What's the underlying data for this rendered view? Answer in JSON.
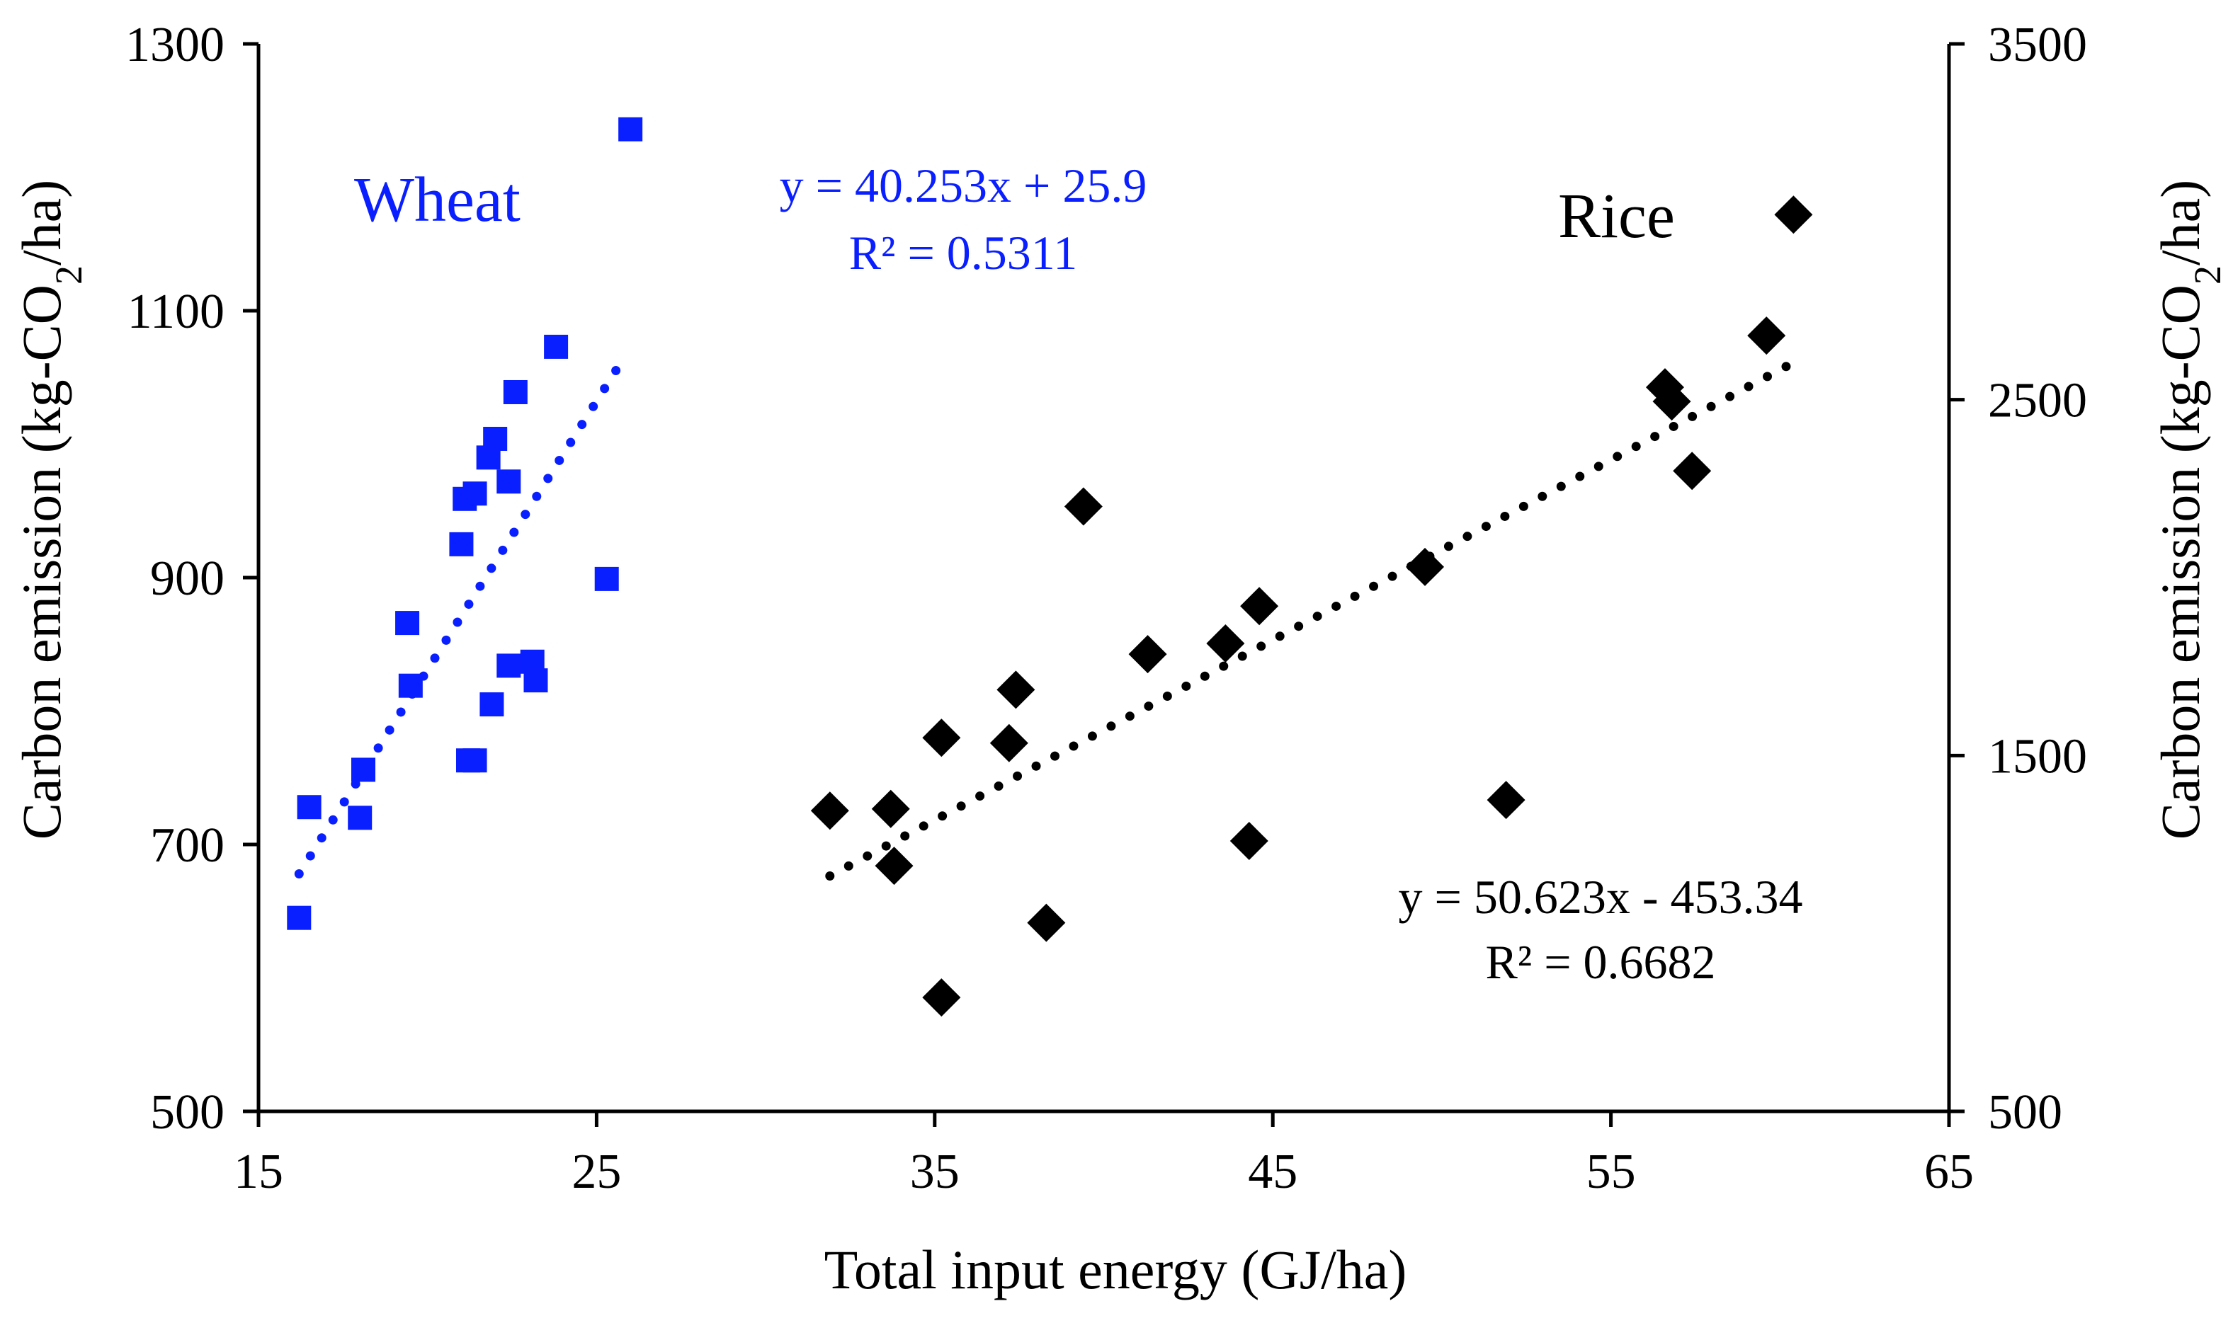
{
  "chart_data": {
    "type": "scatter",
    "xlabel": "Total input energy (GJ/ha)",
    "ylabel_left": {
      "pre": "Carbon emission (kg-CO",
      "sub": "2",
      "post": "/ha)"
    },
    "ylabel_right": {
      "pre": "Carbon emission (kg-CO",
      "sub": "2",
      "post": "/ha)"
    },
    "xlim": [
      15,
      65
    ],
    "ylim_left": [
      500,
      1300
    ],
    "ylim_right": [
      500,
      3500
    ],
    "x_ticks": [
      15,
      25,
      35,
      45,
      55,
      65
    ],
    "y_left_ticks": [
      500,
      700,
      900,
      1100,
      1300
    ],
    "y_right_ticks": [
      500,
      1500,
      2500,
      3500
    ],
    "grid": false,
    "series": [
      {
        "name": "Wheat",
        "axis": "left",
        "color": "#0a1fff",
        "marker": "square",
        "trendline": {
          "type": "linear",
          "slope": 40.253,
          "intercept": 25.9,
          "x_range": [
            16.2,
            25.6
          ]
        },
        "equation": "y = 40.253x + 25.9",
        "r2": "R² = 0.5311",
        "points": [
          [
            16.2,
            645
          ],
          [
            16.5,
            728
          ],
          [
            18.0,
            720
          ],
          [
            18.1,
            756
          ],
          [
            19.4,
            866
          ],
          [
            19.5,
            819
          ],
          [
            21.0,
            925
          ],
          [
            21.1,
            959
          ],
          [
            21.2,
            763
          ],
          [
            21.4,
            963
          ],
          [
            21.4,
            763
          ],
          [
            21.8,
            990
          ],
          [
            21.9,
            805
          ],
          [
            22.0,
            1004
          ],
          [
            22.4,
            834
          ],
          [
            22.4,
            972
          ],
          [
            22.6,
            1039
          ],
          [
            23.1,
            837
          ],
          [
            23.2,
            823
          ],
          [
            23.8,
            1073
          ],
          [
            25.3,
            899
          ],
          [
            26.0,
            1236
          ]
        ]
      },
      {
        "name": "Rice",
        "axis": "right",
        "color": "#000000",
        "marker": "diamond",
        "trendline": {
          "type": "linear",
          "slope": 50.623,
          "intercept": -453.34,
          "x_range": [
            31.9,
            60.3
          ]
        },
        "equation": "y = 50.623x - 453.34",
        "r2": "R² = 0.6682",
        "points": [
          [
            31.9,
            1345
          ],
          [
            33.7,
            1350
          ],
          [
            33.8,
            1190
          ],
          [
            35.2,
            1550
          ],
          [
            35.2,
            820
          ],
          [
            37.2,
            1535
          ],
          [
            37.4,
            1685
          ],
          [
            38.3,
            1030
          ],
          [
            39.4,
            2200
          ],
          [
            41.3,
            1785
          ],
          [
            43.6,
            1815
          ],
          [
            44.3,
            1260
          ],
          [
            44.6,
            1920
          ],
          [
            49.5,
            2030
          ],
          [
            51.9,
            1375
          ],
          [
            56.6,
            2535
          ],
          [
            56.8,
            2495
          ],
          [
            57.4,
            2300
          ],
          [
            59.6,
            2680
          ],
          [
            60.4,
            3020
          ]
        ]
      }
    ]
  }
}
